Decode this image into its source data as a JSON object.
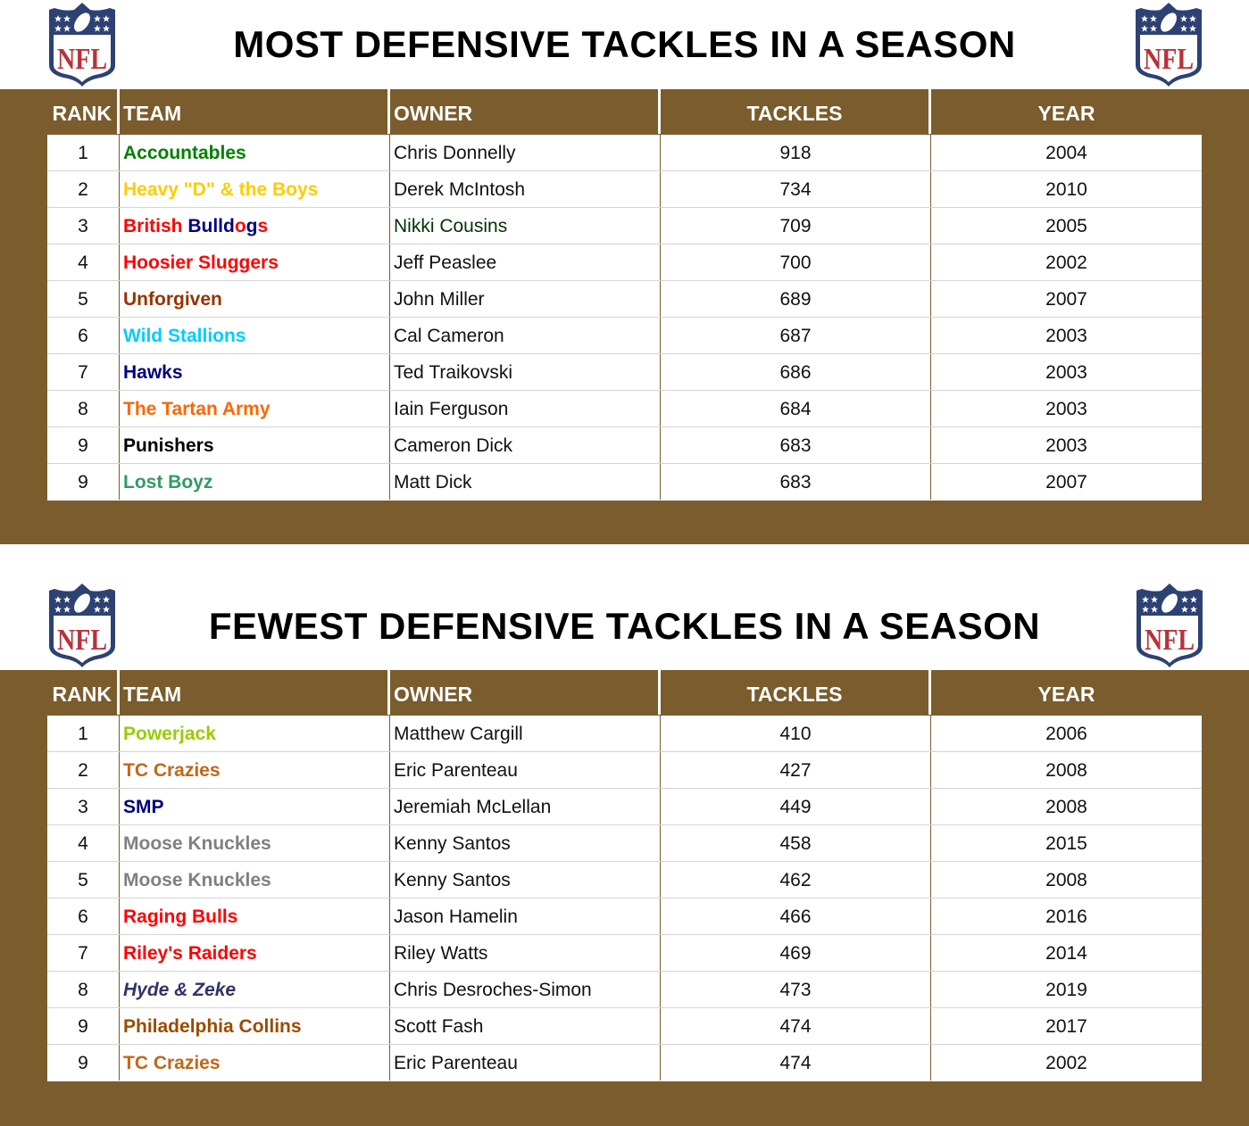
{
  "colors": {
    "band": "#7A5C2D",
    "logo_navy": "#2D4273",
    "logo_red": "#B8323A"
  },
  "logo_text": "NFL",
  "columns": [
    "RANK",
    "TEAM",
    "OWNER",
    "TACKLES",
    "YEAR"
  ],
  "sections": [
    {
      "title": "MOST DEFENSIVE TACKLES IN A SEASON",
      "rows": [
        {
          "rank": "1",
          "team": "Accountables",
          "color": "#008000",
          "owner": "Chris Donnelly",
          "tackles": "918",
          "year": "2004"
        },
        {
          "rank": "2",
          "team": "Heavy \"D\" & the Boys",
          "color": "#FFCC00",
          "owner": "Derek McIntosh",
          "tackles": "734",
          "year": "2010"
        },
        {
          "rank": "3",
          "team": "British Bulldogs",
          "segments": [
            {
              "t": "British ",
              "c": "#FF0000"
            },
            {
              "t": "Bulld",
              "c": "#000080"
            },
            {
              "t": "o",
              "c": "#FF0000"
            },
            {
              "t": "g",
              "c": "#000080"
            },
            {
              "t": "s",
              "c": "#FF0000"
            }
          ],
          "owner": "Nikki Cousins",
          "owner_color": "#003300",
          "tackles": "709",
          "year": "2005"
        },
        {
          "rank": "4",
          "team": "Hoosier Sluggers",
          "color": "#FF0000",
          "owner": "Jeff Peaslee",
          "tackles": "700",
          "year": "2002"
        },
        {
          "rank": "5",
          "team": "Unforgiven",
          "color": "#993300",
          "owner": "John Miller",
          "tackles": "689",
          "year": "2007"
        },
        {
          "rank": "6",
          "team": "Wild Stallions",
          "color": "#00CCFF",
          "owner": "Cal Cameron",
          "tackles": "687",
          "year": "2003"
        },
        {
          "rank": "7",
          "team": "Hawks",
          "color": "#000080",
          "owner": "Ted Traikovski",
          "tackles": "686",
          "year": "2003"
        },
        {
          "rank": "8",
          "team": "The Tartan Army",
          "color": "#FF6600",
          "owner": "Iain Ferguson",
          "tackles": "684",
          "year": "2003"
        },
        {
          "rank": "9",
          "team": "Punishers",
          "color": "#000000",
          "owner": "Cameron Dick",
          "tackles": "683",
          "year": "2003"
        },
        {
          "rank": "9",
          "team": "Lost Boyz",
          "color": "#339966",
          "owner": "Matt Dick",
          "tackles": "683",
          "year": "2007"
        }
      ]
    },
    {
      "title": "FEWEST DEFENSIVE TACKLES IN A SEASON",
      "rows": [
        {
          "rank": "1",
          "team": "Powerjack",
          "color": "#99CC00",
          "owner": "Matthew Cargill",
          "tackles": "410",
          "year": "2006"
        },
        {
          "rank": "2",
          "team": "TC Crazies",
          "color": "#C0671B",
          "owner": "Eric Parenteau",
          "tackles": "427",
          "year": "2008"
        },
        {
          "rank": "3",
          "team": "SMP",
          "color": "#000080",
          "owner": "Jeremiah McLellan",
          "tackles": "449",
          "year": "2008"
        },
        {
          "rank": "4",
          "team": "Moose Knuckles",
          "color": "#808080",
          "owner": "Kenny Santos",
          "tackles": "458",
          "year": "2015"
        },
        {
          "rank": "5",
          "team": "Moose Knuckles",
          "color": "#808080",
          "owner": "Kenny Santos",
          "tackles": "462",
          "year": "2008"
        },
        {
          "rank": "6",
          "team": "Raging Bulls",
          "color": "#FF0000",
          "owner": "Jason Hamelin",
          "tackles": "466",
          "year": "2016"
        },
        {
          "rank": "7",
          "team": "Riley's Raiders",
          "color": "#FF0000",
          "owner": "Riley Watts",
          "tackles": "469",
          "year": "2014"
        },
        {
          "rank": "8",
          "team": "Hyde & Zeke",
          "color": "#333366",
          "italic": true,
          "owner": "Chris Desroches-Simon",
          "tackles": "473",
          "year": "2019"
        },
        {
          "rank": "9",
          "team": "Philadelphia Collins",
          "color": "#994C00",
          "owner": "Scott Fash",
          "tackles": "474",
          "year": "2017"
        },
        {
          "rank": "9",
          "team": "TC Crazies",
          "color": "#C0671B",
          "owner": "Eric Parenteau",
          "tackles": "474",
          "year": "2002"
        }
      ]
    }
  ]
}
